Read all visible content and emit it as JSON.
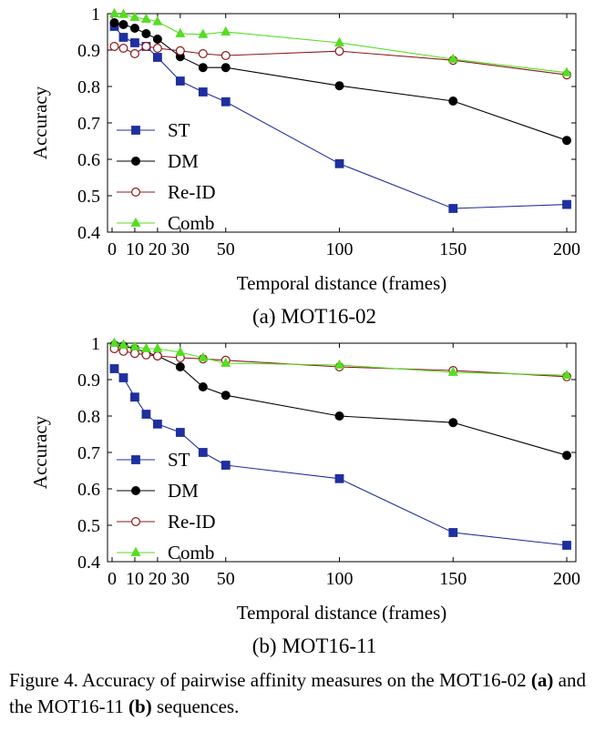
{
  "chart_data": [
    {
      "type": "line",
      "subcaption": "(a) MOT16-02",
      "xlabel": "Temporal distance (frames)",
      "ylabel": "Accuracy",
      "xlim": [
        -2,
        204
      ],
      "ylim": [
        0.4,
        1.0
      ],
      "xticks": [
        0,
        10,
        20,
        30,
        50,
        100,
        150,
        200
      ],
      "xtick_labels": [
        "0",
        "10",
        "20",
        "30",
        "50",
        "100",
        "150",
        "200"
      ],
      "yticks": [
        0.4,
        0.5,
        0.6,
        0.7,
        0.8,
        0.9,
        1.0
      ],
      "ytick_labels": [
        "0.4",
        "0.5",
        "0.6",
        "0.7",
        "0.8",
        "0.9",
        "1"
      ],
      "grid": false,
      "legend_position": "bottom-left",
      "x": [
        1,
        5,
        10,
        15,
        20,
        30,
        40,
        50,
        100,
        150,
        200
      ],
      "series": [
        {
          "name": "ST",
          "color": "#1f2f9e",
          "marker": "square",
          "values": [
            0.965,
            0.935,
            0.92,
            0.91,
            0.88,
            0.815,
            0.785,
            0.758,
            0.588,
            0.465,
            0.476
          ]
        },
        {
          "name": "DM",
          "color": "#000000",
          "marker": "filled-circle",
          "values": [
            0.975,
            0.97,
            0.96,
            0.945,
            0.93,
            0.882,
            0.852,
            0.852,
            0.802,
            0.76,
            0.652
          ]
        },
        {
          "name": "Re-ID",
          "color": "#8b1a1a",
          "marker": "open-circle",
          "values": [
            0.91,
            0.905,
            0.89,
            0.91,
            0.905,
            0.898,
            0.89,
            0.885,
            0.897,
            0.872,
            0.832
          ]
        },
        {
          "name": "Comb",
          "color": "#55dd22",
          "marker": "triangle",
          "values": [
            1.0,
            0.998,
            0.99,
            0.985,
            0.978,
            0.945,
            0.943,
            0.95,
            0.92,
            0.875,
            0.838
          ]
        }
      ]
    },
    {
      "type": "line",
      "subcaption": "(b) MOT16-11",
      "xlabel": "Temporal distance (frames)",
      "ylabel": "Accuracy",
      "xlim": [
        -2,
        204
      ],
      "ylim": [
        0.4,
        1.0
      ],
      "xticks": [
        0,
        10,
        20,
        30,
        50,
        100,
        150,
        200
      ],
      "xtick_labels": [
        "0",
        "10",
        "20",
        "30",
        "50",
        "100",
        "150",
        "200"
      ],
      "yticks": [
        0.4,
        0.5,
        0.6,
        0.7,
        0.8,
        0.9,
        1.0
      ],
      "ytick_labels": [
        "0.4",
        "0.5",
        "0.6",
        "0.7",
        "0.8",
        "0.9",
        "1"
      ],
      "grid": false,
      "legend_position": "bottom-left",
      "x": [
        1,
        5,
        10,
        15,
        20,
        30,
        40,
        50,
        100,
        150,
        200
      ],
      "series": [
        {
          "name": "ST",
          "color": "#1f2f9e",
          "marker": "square",
          "values": [
            0.93,
            0.905,
            0.852,
            0.805,
            0.778,
            0.755,
            0.7,
            0.665,
            0.628,
            0.48,
            0.445
          ]
        },
        {
          "name": "DM",
          "color": "#000000",
          "marker": "filled-circle",
          "values": [
            0.995,
            0.992,
            0.985,
            0.975,
            0.965,
            0.935,
            0.88,
            0.857,
            0.8,
            0.782,
            0.692
          ]
        },
        {
          "name": "Re-ID",
          "color": "#8b1a1a",
          "marker": "open-circle",
          "values": [
            0.985,
            0.978,
            0.972,
            0.968,
            0.965,
            0.96,
            0.957,
            0.953,
            0.935,
            0.925,
            0.908
          ]
        },
        {
          "name": "Comb",
          "color": "#55dd22",
          "marker": "triangle",
          "values": [
            1.0,
            0.995,
            0.99,
            0.985,
            0.985,
            0.975,
            0.96,
            0.945,
            0.94,
            0.92,
            0.912
          ]
        }
      ]
    }
  ],
  "caption": {
    "label": "Figure 4.",
    "text_1": " Accuracy of pairwise affinity measures on the MOT16-02 ",
    "ref_a": "(a)",
    "text_2": " and the MOT16-11 ",
    "ref_b": "(b)",
    "text_3": " sequences."
  }
}
